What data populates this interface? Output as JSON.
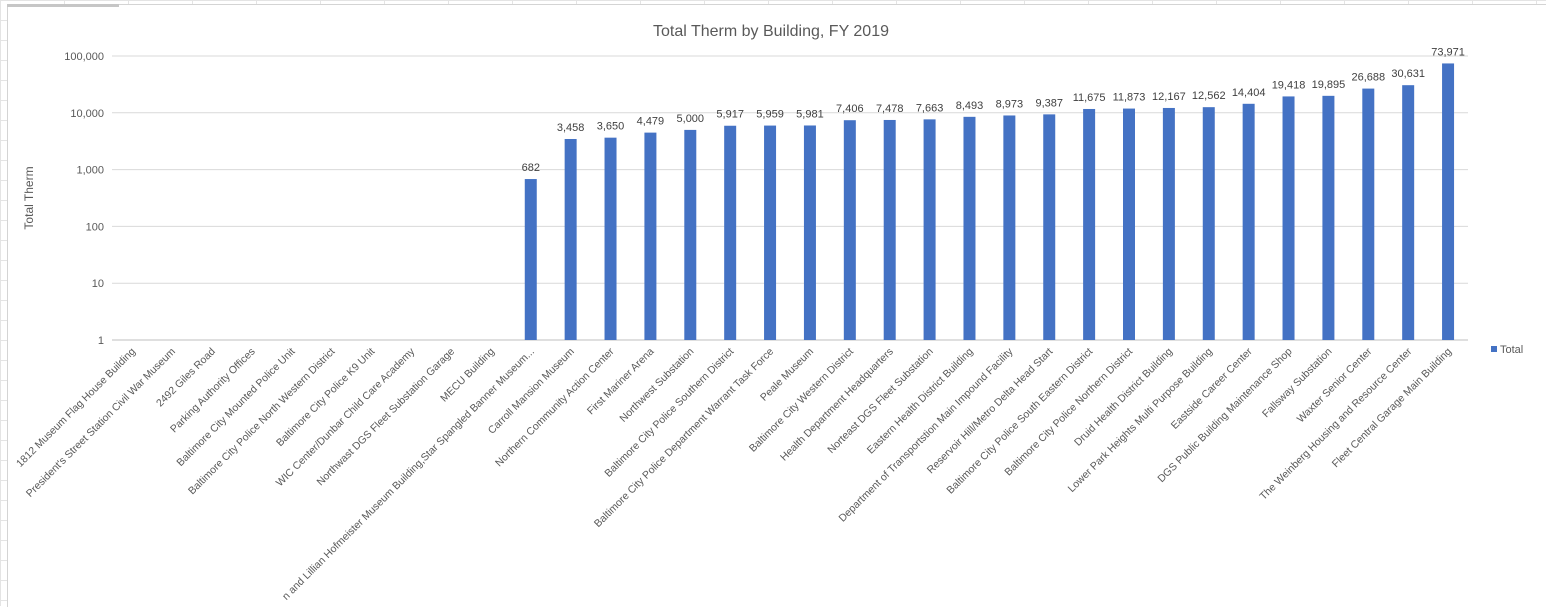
{
  "chart_data": {
    "type": "bar",
    "title": "Total Therm by Building, FY 2019",
    "ylabel": "Total Therm",
    "xlabel": "",
    "yscale": "log",
    "ylim": [
      1,
      100000
    ],
    "yticks": [
      "1",
      "10",
      "100",
      "1,000",
      "10,000",
      "100,000"
    ],
    "legend": "right",
    "grid": true,
    "bar_color": "#4472C4",
    "series": [
      {
        "name": "Total",
        "values": [
          null,
          null,
          null,
          null,
          null,
          null,
          null,
          null,
          null,
          null,
          682,
          3458,
          3650,
          4479,
          5000,
          5917,
          5959,
          5981,
          7406,
          7478,
          7663,
          8493,
          8973,
          9387,
          11675,
          11873,
          12167,
          12562,
          14404,
          19418,
          19895,
          26688,
          30631,
          73971
        ]
      }
    ],
    "data_labels": [
      "",
      "",
      "",
      "",
      "",
      "",
      "",
      "",
      "",
      "",
      "682",
      "3,458",
      "3,650",
      "4,479",
      "5,000",
      "5,917",
      "5,959",
      "5,981",
      "7,406",
      "7,478",
      "7,663",
      "8,493",
      "8,973",
      "9,387",
      "11,675",
      "11,873",
      "12,167",
      "12,562",
      "14,404",
      "19,418",
      "19,895",
      "26,688",
      "30,631",
      "73,971"
    ],
    "categories": [
      "1812 Museum Flag House Building",
      "President's Street Station Civil War Museum",
      "2492 Giles Road",
      "Parking Authority Offices",
      "Baltimore City Mounted Police Unit",
      "Baltimore City Police North Western District",
      "Baltimore City Police K9 Unit",
      "WIC Center/Dunbar Child Care Academy",
      "Northwast DGS Fleet Substation Garage",
      "MECU Building",
      "n and Lillian Hofmeister Museum Building,Star Spangled Banner Museum...",
      "Carroll Mansion Museum",
      "Northern Community Action Center",
      "First Mariner Arena",
      "Northwest Substation",
      "Baltimore City Police Southern District",
      "Baltimore City Police Department Warrant Task Force",
      "Peale Museum",
      "Baltimore City Western District",
      "Health Department Headquarters",
      "Norteast DGS Fleet Substation",
      "Eastern Health District Building",
      "Department of Transportstion Main Impound Facility",
      "Reservoir Hill/Metro Delta Head Start",
      "Baltimore City Police South Eastern District",
      "Baltimore City Police Northern District",
      "Druid Health District Building",
      "Lower Park Heights Multi Purpose Building",
      "Eastside Career Center",
      "DGS Public Building Maintenance Shop",
      "Fallsway Substation",
      "Waxter Senior Center",
      "The Weinberg Housing and Resource Center",
      "Fleet Central Garage Main Building"
    ]
  }
}
